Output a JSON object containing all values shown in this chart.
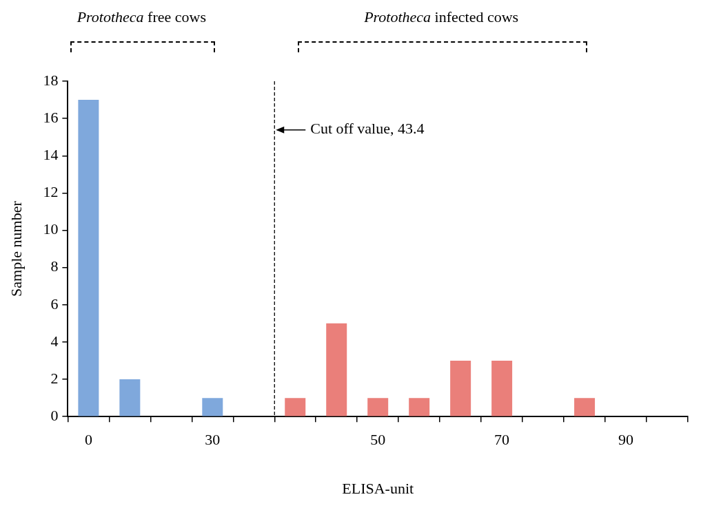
{
  "chart_data": {
    "type": "bar",
    "xlabel": "ELISA-unit",
    "ylabel": "Sample number",
    "categories": [
      "0",
      null,
      null,
      "30",
      null,
      null,
      null,
      "50",
      null,
      null,
      "70",
      null,
      null,
      "90",
      null
    ],
    "values": [
      17,
      2,
      0,
      1,
      0,
      1,
      5,
      1,
      1,
      3,
      3,
      0,
      1,
      0,
      0
    ],
    "colors": [
      "#7fa8dc",
      "#7fa8dc",
      "#7fa8dc",
      "#7fa8dc",
      "#7fa8dc",
      "#ea7f7a",
      "#ea7f7a",
      "#ea7f7a",
      "#ea7f7a",
      "#ea7f7a",
      "#ea7f7a",
      "#ea7f7a",
      "#ea7f7a",
      "#ea7f7a",
      "#ea7f7a"
    ],
    "ylim": [
      0,
      18
    ],
    "yticks": [
      0,
      2,
      4,
      6,
      8,
      10,
      12,
      14,
      16,
      18
    ],
    "grid": false,
    "legend": false,
    "annotations": [
      "Prototheca free cows",
      "Prototheca infected cows",
      "Cut off value, 43.4"
    ]
  }
}
